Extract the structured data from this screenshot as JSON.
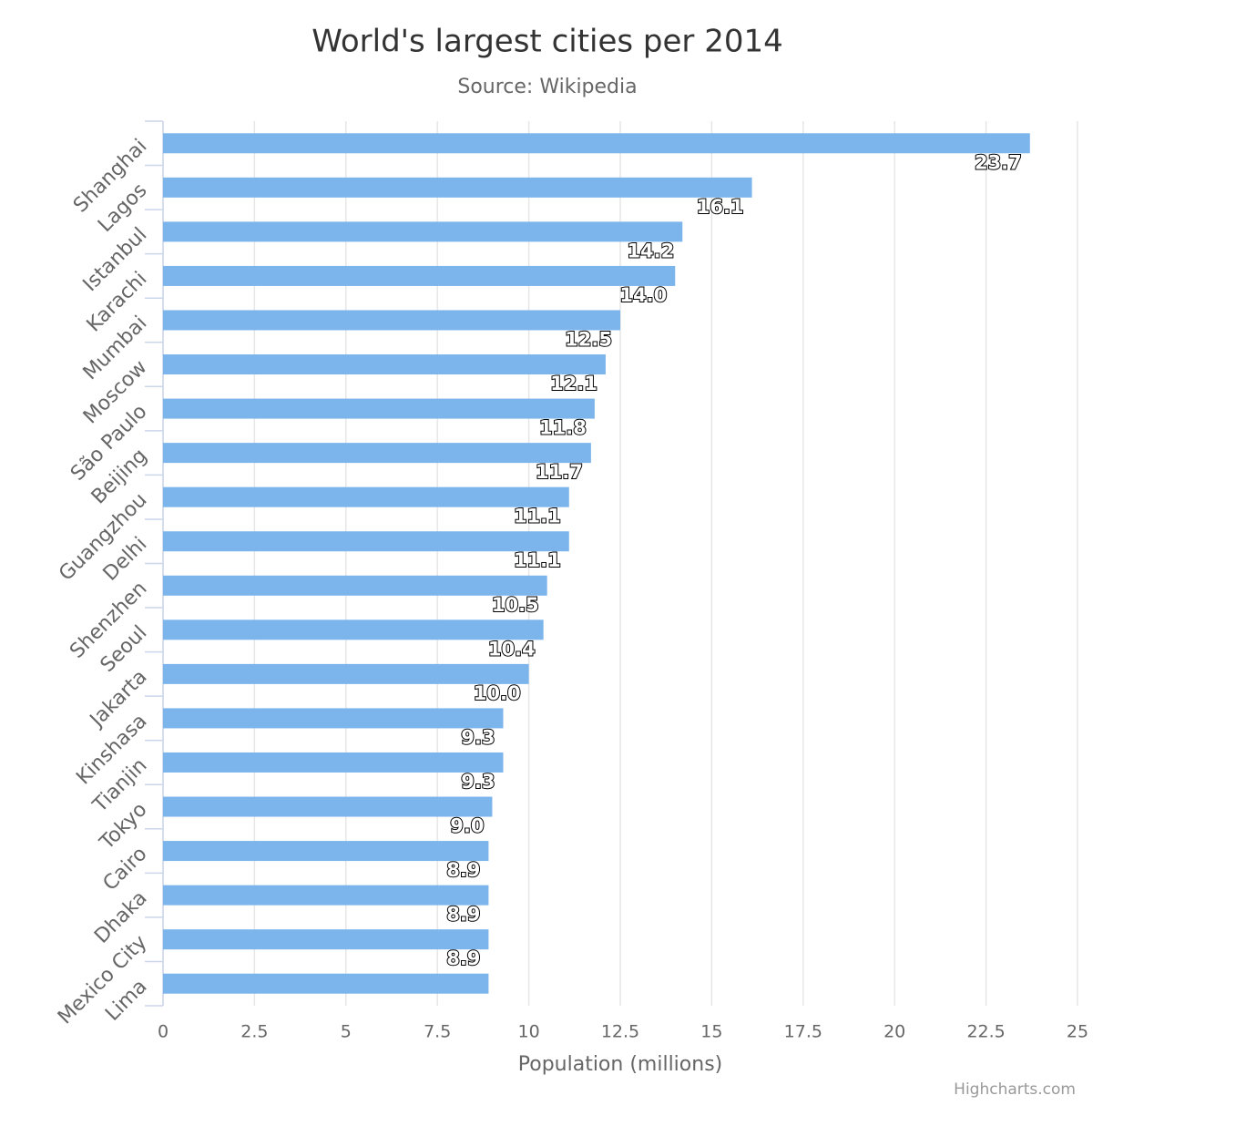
{
  "chart_data": {
    "type": "bar",
    "orientation": "horizontal",
    "title": "World's largest cities per 2014",
    "subtitle": "Source: Wikipedia",
    "x_axis_title": "Population (millions)",
    "credits": "Highcharts.com",
    "categories": [
      "Shanghai",
      "Lagos",
      "Istanbul",
      "Karachi",
      "Mumbai",
      "Moscow",
      "São Paulo",
      "Beijing",
      "Guangzhou",
      "Delhi",
      "Shenzhen",
      "Seoul",
      "Jakarta",
      "Kinshasa",
      "Tianjin",
      "Tokyo",
      "Cairo",
      "Dhaka",
      "Mexico City",
      "Lima"
    ],
    "values": [
      23.7,
      16.1,
      14.2,
      14.0,
      12.5,
      12.1,
      11.8,
      11.7,
      11.1,
      11.1,
      10.5,
      10.4,
      10.0,
      9.3,
      9.3,
      9.0,
      8.9,
      8.9,
      8.9,
      8.9
    ],
    "value_labels": [
      "23.7",
      "16.1",
      "14.2",
      "14.0",
      "12.5",
      "12.1",
      "11.8",
      "11.7",
      "11.1",
      "11.1",
      "10.5",
      "10.4",
      "10.0",
      "9.3",
      "9.3",
      "9.0",
      "8.9",
      "8.9",
      "8.9",
      null
    ],
    "color": "#7cb5ec",
    "xlim": [
      0,
      25
    ],
    "xticks": [
      0,
      2.5,
      5,
      7.5,
      10,
      12.5,
      15,
      17.5,
      20,
      22.5,
      25
    ],
    "grid": true
  }
}
